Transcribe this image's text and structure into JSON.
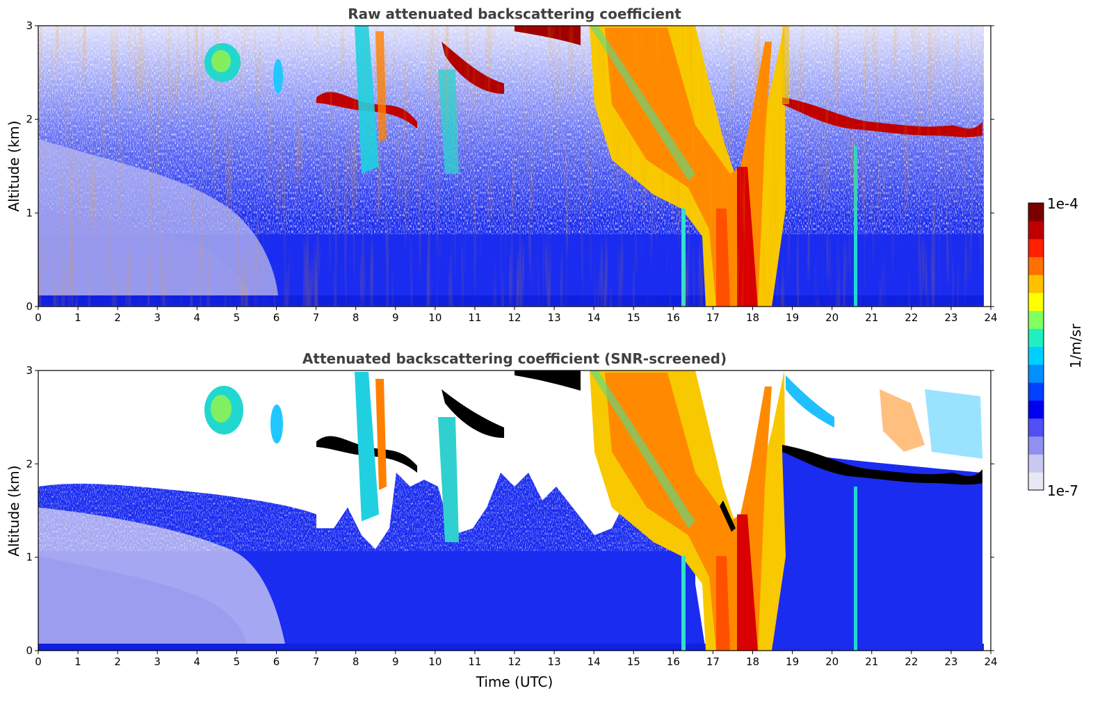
{
  "colors": {
    "colormap": [
      "#e8e8f5",
      "#c8c8f0",
      "#9090f0",
      "#5050f5",
      "#0000f0",
      "#0040ff",
      "#0090ff",
      "#00d0ff",
      "#20f0c0",
      "#80ff60",
      "#ffff00",
      "#ffc000",
      "#ff7000",
      "#ff2000",
      "#c00000",
      "#7a0000"
    ],
    "overflow": "#000000"
  },
  "chart_data": [
    {
      "type": "heatmap",
      "title": "Raw attenuated backscattering coefficient",
      "xlabel": "",
      "ylabel": "Altitude (km)",
      "xlim": [
        0,
        24
      ],
      "ylim": [
        0,
        3
      ],
      "xticks": [
        "0",
        "1",
        "2",
        "3",
        "4",
        "5",
        "6",
        "7",
        "8",
        "9",
        "10",
        "11",
        "12",
        "13",
        "14",
        "15",
        "16",
        "17",
        "18",
        "19",
        "20",
        "21",
        "22",
        "23",
        "24"
      ],
      "yticks": [
        "0",
        "1",
        "2",
        "3"
      ],
      "colorscale": {
        "min": "1e-7",
        "max": "1e-4",
        "label": "1/m/sr"
      },
      "features": [
        {
          "time": [
            0,
            6.5
          ],
          "altitude": [
            0,
            0.1
          ],
          "level": "moderate (blue)"
        },
        {
          "time": [
            4.2,
            5.0
          ],
          "altitude": [
            2.35,
            2.75
          ],
          "level": "cyan/green cloud"
        },
        {
          "time": [
            7.0,
            9.5
          ],
          "altitude": [
            1.9,
            2.4
          ],
          "level": "high (red) cloud layer"
        },
        {
          "time": [
            10.2,
            11.8
          ],
          "altitude": [
            2.1,
            2.7
          ],
          "level": "high (red) cloud layer"
        },
        {
          "time": [
            14.0,
            18.5
          ],
          "altitude": [
            0,
            3.0
          ],
          "level": "yellow-red precipitating cloud"
        },
        {
          "time": [
            18.8,
            23.8
          ],
          "altitude": [
            1.8,
            2.3
          ],
          "level": "high (red) cloud top"
        }
      ]
    },
    {
      "type": "heatmap",
      "title": "Attenuated backscattering coefficient (SNR-screened)",
      "xlabel": "Time (UTC)",
      "ylabel": "Altitude (km)",
      "xlim": [
        0,
        24
      ],
      "ylim": [
        0,
        3
      ],
      "xticks": [
        "0",
        "1",
        "2",
        "3",
        "4",
        "5",
        "6",
        "7",
        "8",
        "9",
        "10",
        "11",
        "12",
        "13",
        "14",
        "15",
        "16",
        "17",
        "18",
        "19",
        "20",
        "21",
        "22",
        "23",
        "24"
      ],
      "yticks": [
        "0",
        "1",
        "2",
        "3"
      ],
      "colorscale": {
        "min": "1e-7",
        "max": "1e-4",
        "label": "1/m/sr"
      }
    }
  ]
}
